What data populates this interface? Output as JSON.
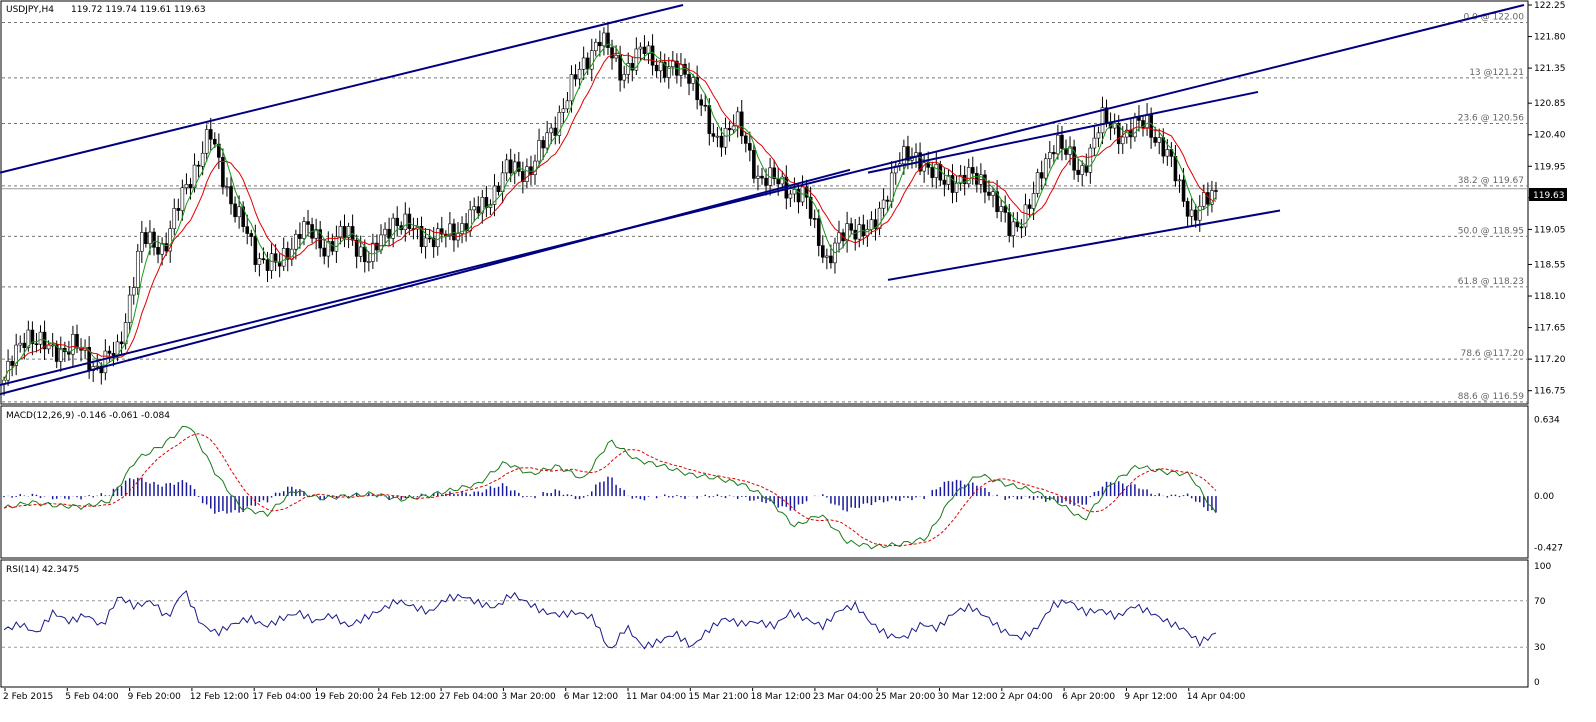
{
  "chart_data": {
    "type": "candlestick",
    "symbol_info": {
      "label": "USDJPY,H4",
      "ohlc": "119.72 119.74 119.61 119.63"
    },
    "last_price": "119.63",
    "price_axis": {
      "ticks": [
        "122.25",
        "121.80",
        "121.35",
        "120.85",
        "120.40",
        "119.95",
        "119.50",
        "119.05",
        "118.55",
        "118.10",
        "117.65",
        "117.20",
        "116.75"
      ],
      "range": [
        116.66,
        122.25
      ]
    },
    "time_labels": [
      "2 Feb 2015",
      "5 Feb 04:00",
      "9 Feb 20:00",
      "12 Feb 12:00",
      "17 Feb 04:00",
      "19 Feb 20:00",
      "24 Feb 12:00",
      "27 Feb 04:00",
      "3 Mar 20:00",
      "6 Mar 12:00",
      "11 Mar 04:00",
      "15 Mar 21:00",
      "18 Mar 12:00",
      "23 Mar 04:00",
      "25 Mar 20:00",
      "30 Mar 12:00",
      "2 Apr 04:00",
      "6 Apr 20:00",
      "9 Apr 12:00",
      "14 Apr 04:00"
    ],
    "fib_levels": [
      {
        "label": "0.0 @ 122.00",
        "value": 122.0
      },
      {
        "label": "13 @121.21",
        "value": 121.21
      },
      {
        "label": "23.6 @ 120.56",
        "value": 120.56
      },
      {
        "label": "38.2 @ 119.67",
        "value": 119.67
      },
      {
        "label": "50.0 @ 118.95",
        "value": 118.95
      },
      {
        "label": "61.8 @ 118.23",
        "value": 118.23
      },
      {
        "label": "78.6 @117.20",
        "value": 117.2
      },
      {
        "label": "88.6 @ 116.59",
        "value": 116.59
      }
    ],
    "price_path": [
      116.9,
      117.6,
      117.3,
      117.4,
      117.1,
      117.3,
      118.9,
      118.8,
      119.7,
      120.4,
      119.4,
      118.7,
      118.5,
      119.1,
      118.8,
      119.0,
      118.6,
      119.2,
      119.0,
      118.9,
      119.1,
      119.4,
      119.9,
      119.9,
      120.5,
      121.2,
      121.8,
      121.3,
      121.6,
      121.3,
      121.3,
      120.3,
      120.6,
      119.8,
      119.7,
      119.5,
      118.6,
      119.1,
      119.0,
      120.0,
      120.1,
      119.7,
      119.8,
      119.7,
      119.0,
      119.5,
      120.4,
      119.8,
      120.6,
      120.4,
      120.6,
      120.0,
      119.2,
      119.63
    ],
    "trendlines": [
      {
        "from": [
          0,
          119.86
        ],
        "to": [
          683,
          122.25
        ]
      },
      {
        "from": [
          0,
          116.7
        ],
        "to": [
          850,
          119.9
        ]
      },
      {
        "from": [
          0,
          116.83
        ],
        "to": [
          1524,
          122.25
        ]
      },
      {
        "from": [
          868,
          119.86
        ],
        "to": [
          1258,
          121.01
        ]
      },
      {
        "from": [
          888,
          118.33
        ],
        "to": [
          1280,
          119.32
        ]
      }
    ],
    "macd": {
      "label": "MACD(12,26,9) -0.146 -0.061 -0.084",
      "ticks": [
        "0.634",
        "0.00",
        "-0.427"
      ],
      "range": [
        -0.48,
        0.68
      ],
      "path": [
        -0.1,
        -0.05,
        -0.08,
        -0.09,
        -0.04,
        0.3,
        0.42,
        0.6,
        0.2,
        -0.1,
        -0.15,
        0.05,
        -0.02,
        0.0,
        0.02,
        -0.03,
        0.0,
        0.05,
        0.1,
        0.28,
        0.18,
        0.25,
        0.14,
        0.46,
        0.3,
        0.25,
        0.18,
        0.15,
        0.1,
        -0.02,
        -0.25,
        -0.15,
        -0.38,
        -0.42,
        -0.4,
        -0.35,
        0.0,
        0.18,
        0.1,
        0.05,
        -0.05,
        -0.2,
        0.1,
        0.25,
        0.2,
        0.18,
        -0.15
      ]
    },
    "rsi": {
      "label": "RSI(14) 42.3475",
      "ticks": [
        "100",
        "70",
        "30",
        "0"
      ],
      "range": [
        0,
        100
      ],
      "path": [
        45,
        50,
        42,
        60,
        52,
        58,
        48,
        74,
        65,
        70,
        55,
        80,
        50,
        42,
        50,
        55,
        48,
        55,
        60,
        52,
        58,
        48,
        55,
        62,
        70,
        65,
        60,
        72,
        74,
        68,
        64,
        76,
        68,
        60,
        58,
        60,
        55,
        26,
        48,
        30,
        35,
        42,
        30,
        45,
        55,
        50,
        52,
        48,
        60,
        54,
        48,
        62,
        66,
        50,
        40,
        38,
        50,
        46,
        60,
        65,
        56,
        44,
        38,
        45,
        66,
        70,
        60,
        62,
        56,
        66,
        60,
        52,
        46,
        34,
        42
      ]
    }
  }
}
